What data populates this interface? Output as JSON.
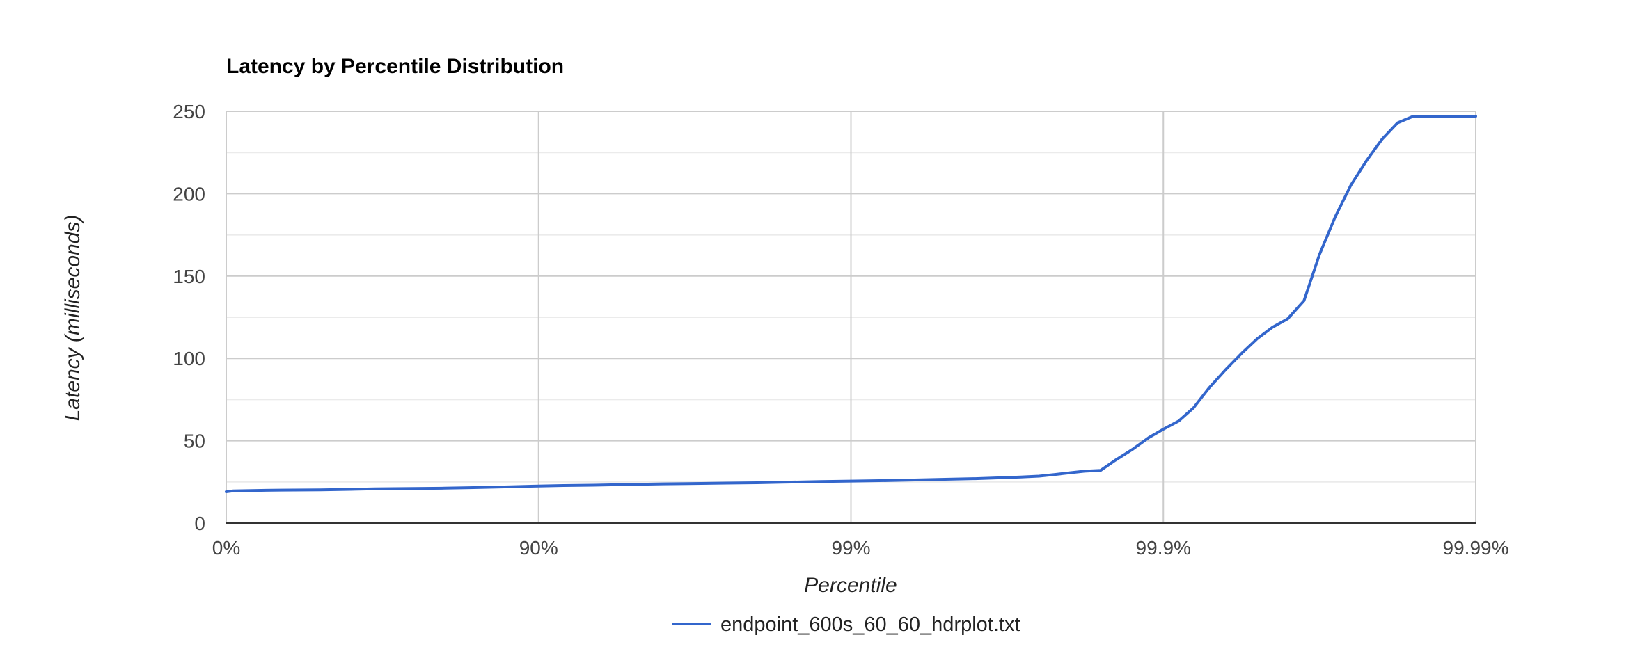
{
  "chart_data": {
    "type": "line",
    "title": "Latency by Percentile Distribution",
    "xlabel": "Percentile",
    "ylabel": "Latency (milliseconds)",
    "x_scale": "log-inverse (1/(1-percentile))",
    "x_ticks": [
      {
        "value": 1,
        "label": "0%"
      },
      {
        "value": 10,
        "label": "90%"
      },
      {
        "value": 100,
        "label": "99%"
      },
      {
        "value": 1000,
        "label": "99.9%"
      },
      {
        "value": 10000,
        "label": "99.99%"
      }
    ],
    "y_ticks": [
      0,
      50,
      100,
      150,
      200,
      250
    ],
    "ylim": [
      0,
      250
    ],
    "grid": true,
    "legend_position": "bottom",
    "series": [
      {
        "name": "endpoint_600s_60_60_hdrplot.txt",
        "color": "#3366cc",
        "x": [
          1,
          1.05,
          1.25,
          1.5,
          2,
          2.5,
          3,
          4,
          5,
          6,
          8,
          10,
          12,
          15,
          20,
          25,
          30,
          40,
          50,
          60,
          80,
          100,
          130,
          160,
          200,
          250,
          300,
          350,
          400,
          450,
          500,
          560,
          630,
          700,
          800,
          900,
          1000,
          1120,
          1250,
          1400,
          1580,
          1780,
          2000,
          2240,
          2500,
          2820,
          3160,
          3550,
          3980,
          4470,
          5010,
          5620,
          6310,
          7080,
          7940,
          8910,
          10000
        ],
        "y": [
          19,
          19.5,
          19.8,
          20,
          20.2,
          20.5,
          20.8,
          21,
          21.2,
          21.5,
          22,
          22.5,
          22.8,
          23,
          23.5,
          23.8,
          24,
          24.3,
          24.5,
          24.8,
          25.2,
          25.5,
          25.8,
          26.2,
          26.6,
          27,
          27.5,
          28,
          28.5,
          29.5,
          30.5,
          31.5,
          32,
          38,
          45,
          52,
          57,
          62,
          70,
          82,
          93,
          103,
          112,
          119,
          124,
          135,
          163,
          186,
          205,
          220,
          233,
          243,
          247,
          247,
          247,
          247,
          247
        ]
      }
    ]
  }
}
